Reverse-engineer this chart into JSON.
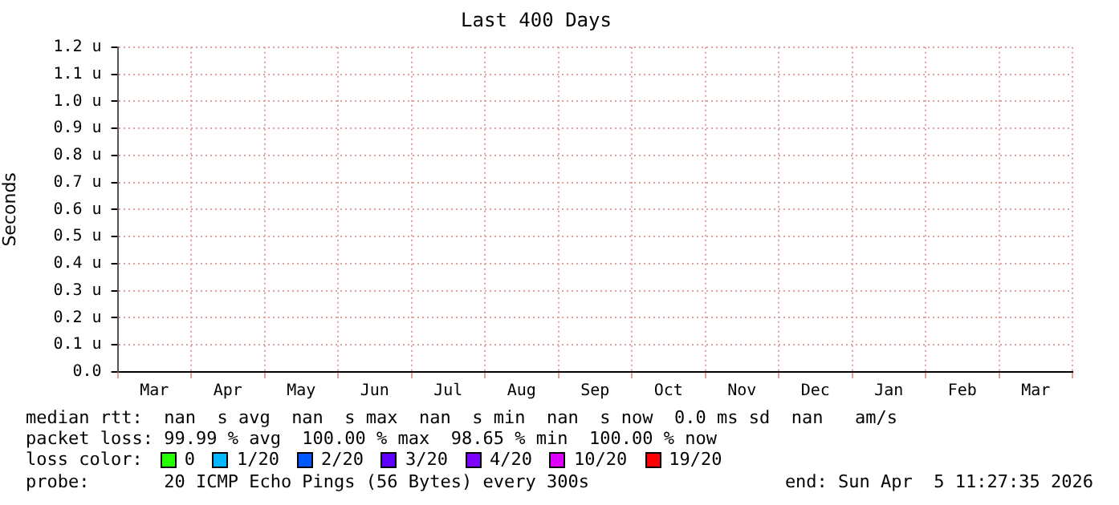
{
  "chart_data": {
    "type": "line",
    "title": "Last 400 Days",
    "ylabel": "Seconds",
    "categories": [
      "Mar",
      "Apr",
      "May",
      "Jun",
      "Jul",
      "Aug",
      "Sep",
      "Oct",
      "Nov",
      "Dec",
      "Jan",
      "Feb",
      "Mar"
    ],
    "series": [
      {
        "name": "0",
        "color": "#26ff00",
        "values": [
          null,
          null,
          null,
          null,
          null,
          null,
          null,
          null,
          null,
          null,
          null,
          null,
          null
        ]
      },
      {
        "name": "1/20",
        "color": "#00b8ff",
        "values": [
          null,
          null,
          null,
          null,
          null,
          null,
          null,
          null,
          null,
          null,
          null,
          null,
          null
        ]
      },
      {
        "name": "2/20",
        "color": "#0059ff",
        "values": [
          null,
          null,
          null,
          null,
          null,
          null,
          null,
          null,
          null,
          null,
          null,
          null,
          null
        ]
      },
      {
        "name": "3/20",
        "color": "#5e00ff",
        "values": [
          null,
          null,
          null,
          null,
          null,
          null,
          null,
          null,
          null,
          null,
          null,
          null,
          null
        ]
      },
      {
        "name": "4/20",
        "color": "#7e00ff",
        "values": [
          null,
          null,
          null,
          null,
          null,
          null,
          null,
          null,
          null,
          null,
          null,
          null,
          null
        ]
      },
      {
        "name": "10/20",
        "color": "#dd00ff",
        "values": [
          null,
          null,
          null,
          null,
          null,
          null,
          null,
          null,
          null,
          null,
          null,
          null,
          null
        ]
      },
      {
        "name": "19/20",
        "color": "#ff0000",
        "values": [
          null,
          null,
          null,
          null,
          null,
          null,
          null,
          null,
          null,
          null,
          null,
          null,
          null
        ]
      }
    ],
    "legend": "bottom",
    "legend_title": "loss color:",
    "ylim": [
      0,
      1.2
    ],
    "yticks": [
      {
        "value": 0,
        "label": "0.0"
      },
      {
        "value": 0.1,
        "label": "0.1 u"
      },
      {
        "value": 0.2,
        "label": "0.2 u"
      },
      {
        "value": 0.3,
        "label": "0.3 u"
      },
      {
        "value": 0.4,
        "label": "0.4 u"
      },
      {
        "value": 0.5,
        "label": "0.5 u"
      },
      {
        "value": 0.6,
        "label": "0.6 u"
      },
      {
        "value": 0.7,
        "label": "0.7 u"
      },
      {
        "value": 0.8,
        "label": "0.8 u"
      },
      {
        "value": 0.9,
        "label": "0.9 u"
      },
      {
        "value": 1.0,
        "label": "1.0 u"
      },
      {
        "value": 1.1,
        "label": "1.1 u"
      },
      {
        "value": 1.2,
        "label": "1.2 u"
      }
    ],
    "grid": true,
    "annotations": [
      "median rtt:  nan  s avg  nan  s max  nan  s min  nan  s now  0.0 ms sd  nan   am/s",
      "packet loss: 99.99 % avg  100.00 % max  98.65 % min  100.00 % now",
      "probe:       20 ICMP Echo Pings (56 Bytes) every 300s",
      "end: Sun Apr  5 11:27:35 2026"
    ]
  }
}
